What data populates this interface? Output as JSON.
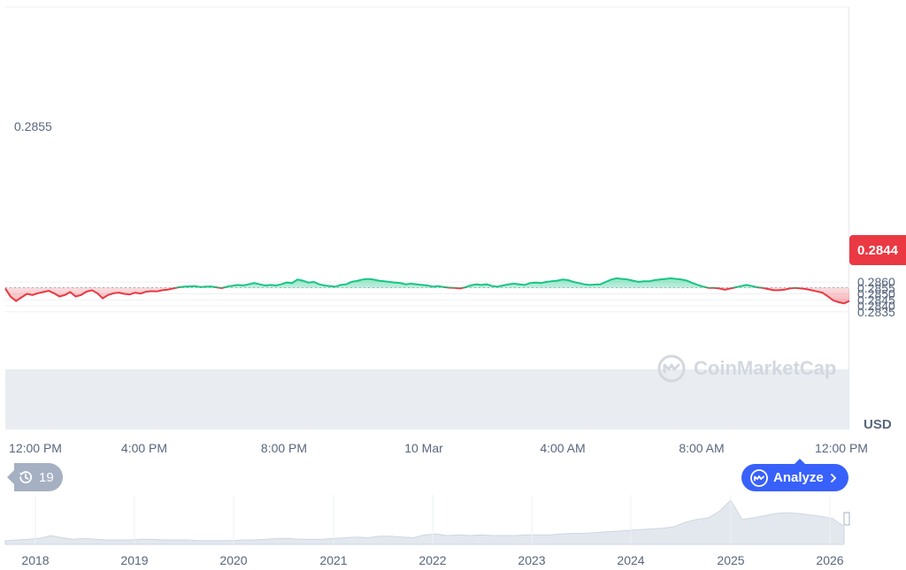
{
  "chart_data": [
    {
      "type": "line",
      "title": "",
      "unit_label": "USD",
      "x_labels": [
        "12:00 PM",
        "4:00 PM",
        "8:00 PM",
        "10 Mar",
        "4:00 AM",
        "8:00 AM",
        "12:00 PM"
      ],
      "y_ticks": [
        "0.2835",
        "0.2840",
        "0.2845",
        "0.2850",
        "0.2855",
        "0.2860"
      ],
      "ylim": [
        0.2831,
        0.2866
      ],
      "reference_value": 0.28552,
      "reference_label": "0.2855",
      "last_value_label": "0.2844",
      "up_color": "#16c784",
      "down_color": "#ea3943",
      "grid": true,
      "series": [
        {
          "values": [
            0.28545,
            0.28475,
            0.2844,
            0.2847,
            0.285,
            0.2849,
            0.28505,
            0.28515,
            0.28525,
            0.28505,
            0.28478,
            0.2849,
            0.28515,
            0.28478,
            0.2849,
            0.28518,
            0.2853,
            0.28505,
            0.28462,
            0.2849,
            0.28505,
            0.2851,
            0.285,
            0.28495,
            0.2851,
            0.28502,
            0.28518,
            0.28522,
            0.2852,
            0.2853,
            0.28535,
            0.28545,
            0.28555,
            0.2856,
            0.28562,
            0.28565,
            0.28558,
            0.2856,
            0.28562,
            0.28555,
            0.28548,
            0.2856,
            0.28568,
            0.28575,
            0.2857,
            0.2858,
            0.2859,
            0.2858,
            0.2857,
            0.28575,
            0.2857,
            0.2858,
            0.28595,
            0.2859,
            0.2862,
            0.2861,
            0.28595,
            0.286,
            0.2858,
            0.2857,
            0.28565,
            0.2856,
            0.28575,
            0.2858,
            0.286,
            0.28608,
            0.2862,
            0.28625,
            0.2862,
            0.2861,
            0.28605,
            0.286,
            0.28595,
            0.2859,
            0.2858,
            0.28585,
            0.2858,
            0.28575,
            0.2857,
            0.2856,
            0.28565,
            0.28558,
            0.28552,
            0.2855,
            0.28545,
            0.28555,
            0.2857,
            0.2858,
            0.28575,
            0.2858,
            0.28565,
            0.2856,
            0.2857,
            0.2858,
            0.28585,
            0.2858,
            0.28575,
            0.2859,
            0.28595,
            0.2859,
            0.286,
            0.28605,
            0.2861,
            0.2862,
            0.28615,
            0.286,
            0.2859,
            0.2858,
            0.28575,
            0.28578,
            0.2858,
            0.286,
            0.2862,
            0.2863,
            0.28625,
            0.2862,
            0.2861,
            0.286,
            0.28605,
            0.28605,
            0.28615,
            0.2862,
            0.28625,
            0.2863,
            0.28625,
            0.2862,
            0.2861,
            0.2859,
            0.28575,
            0.2856,
            0.2855,
            0.2855,
            0.28545,
            0.28535,
            0.28545,
            0.28555,
            0.28565,
            0.28575,
            0.28565,
            0.28555,
            0.2855,
            0.2854,
            0.2853,
            0.2853,
            0.28535,
            0.28545,
            0.2855,
            0.28545,
            0.2854,
            0.2853,
            0.2852,
            0.2851,
            0.2848,
            0.28445,
            0.2843,
            0.2842,
            0.2844
          ]
        }
      ]
    },
    {
      "type": "area",
      "title": "",
      "x_labels": [
        "2018",
        "2019",
        "2020",
        "2021",
        "2022",
        "2023",
        "2024",
        "2025",
        "2026"
      ],
      "color": "#cfd6e4",
      "values": [
        0.5,
        0.6,
        0.7,
        0.8,
        1.2,
        0.9,
        0.7,
        0.8,
        0.7,
        0.6,
        0.6,
        0.6,
        0.7,
        0.7,
        0.6,
        0.6,
        0.6,
        0.5,
        0.5,
        0.5,
        0.5,
        0.6,
        0.6,
        0.7,
        0.8,
        0.8,
        0.7,
        0.7,
        0.7,
        0.8,
        0.9,
        1.0,
        0.9,
        1.1,
        1.1,
        1.0,
        0.9,
        1.3,
        1.4,
        1.2,
        1.3,
        1.2,
        1.3,
        1.2,
        1.2,
        1.2,
        1.3,
        1.3,
        1.3,
        1.4,
        1.5,
        1.5,
        1.6,
        1.7,
        1.8,
        1.9,
        2.0,
        2.1,
        2.2,
        2.4,
        3.0,
        3.4,
        3.6,
        4.5,
        6.0,
        3.4,
        3.6,
        3.9,
        4.2,
        4.3,
        4.2,
        4.0,
        3.8,
        3.5,
        2.4
      ]
    }
  ],
  "history_count": "19",
  "analyze_label": "Analyze",
  "watermark_text": "CoinMarketCap"
}
